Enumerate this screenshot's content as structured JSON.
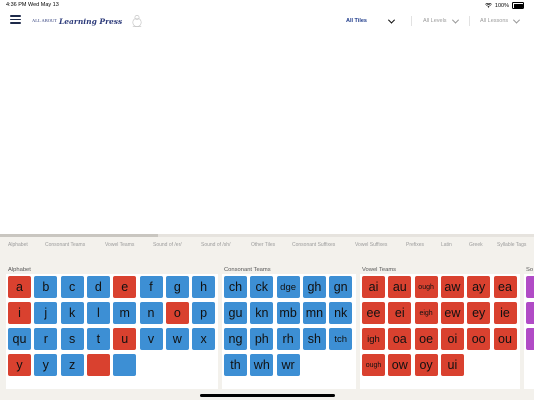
{
  "status_bar": {
    "time": "4:36 PM",
    "date": "Wed May 13",
    "battery": "100%"
  },
  "header": {
    "logo_small": "ALL ABOUT",
    "logo_script": "Learning Press",
    "tiles_filter": "All Tiles",
    "levels_filter": "All Levels",
    "lessons_filter": "All Lessons"
  },
  "categories": [
    "Alphabet",
    "Consonant Teams",
    "Vowel Teams",
    "Sound of /er/",
    "Sound of /sh/",
    "Other Tiles",
    "Consonant Suffixes",
    "Vowel Suffixes",
    "Prefixes",
    "Latin",
    "Greek",
    "Syllable Tags"
  ],
  "sections": {
    "alphabet": {
      "title": "Alphabet",
      "tiles": [
        {
          "text": "a",
          "color": "red"
        },
        {
          "text": "b",
          "color": "blue"
        },
        {
          "text": "c",
          "color": "blue"
        },
        {
          "text": "d",
          "color": "blue"
        },
        {
          "text": "e",
          "color": "red"
        },
        {
          "text": "f",
          "color": "blue"
        },
        {
          "text": "g",
          "color": "blue"
        },
        {
          "text": "h",
          "color": "blue"
        },
        {
          "text": "i",
          "color": "red"
        },
        {
          "text": "j",
          "color": "blue"
        },
        {
          "text": "k",
          "color": "blue"
        },
        {
          "text": "l",
          "color": "blue"
        },
        {
          "text": "m",
          "color": "blue"
        },
        {
          "text": "n",
          "color": "blue"
        },
        {
          "text": "o",
          "color": "red"
        },
        {
          "text": "p",
          "color": "blue"
        },
        {
          "text": "qu",
          "color": "blue"
        },
        {
          "text": "r",
          "color": "blue"
        },
        {
          "text": "s",
          "color": "blue"
        },
        {
          "text": "t",
          "color": "blue"
        },
        {
          "text": "u",
          "color": "red"
        },
        {
          "text": "v",
          "color": "blue"
        },
        {
          "text": "w",
          "color": "blue"
        },
        {
          "text": "x",
          "color": "blue"
        },
        {
          "text": "y",
          "color": "red"
        },
        {
          "text": "y",
          "color": "blue"
        },
        {
          "text": "z",
          "color": "blue"
        },
        {
          "text": "",
          "color": "red"
        },
        {
          "text": "",
          "color": "blue"
        }
      ]
    },
    "consonant_teams": {
      "title": "Consonant Teams",
      "tiles": [
        {
          "text": "ch",
          "color": "blue"
        },
        {
          "text": "ck",
          "color": "blue"
        },
        {
          "text": "dge",
          "color": "blue"
        },
        {
          "text": "gh",
          "color": "blue"
        },
        {
          "text": "gn",
          "color": "blue"
        },
        {
          "text": "gu",
          "color": "blue"
        },
        {
          "text": "kn",
          "color": "blue"
        },
        {
          "text": "mb",
          "color": "blue"
        },
        {
          "text": "mn",
          "color": "blue"
        },
        {
          "text": "nk",
          "color": "blue"
        },
        {
          "text": "ng",
          "color": "blue"
        },
        {
          "text": "ph",
          "color": "blue"
        },
        {
          "text": "rh",
          "color": "blue"
        },
        {
          "text": "sh",
          "color": "blue"
        },
        {
          "text": "tch",
          "color": "blue"
        },
        {
          "text": "th",
          "color": "blue"
        },
        {
          "text": "wh",
          "color": "blue"
        },
        {
          "text": "wr",
          "color": "blue"
        }
      ]
    },
    "vowel_teams": {
      "title": "Vowel Teams",
      "tiles": [
        {
          "text": "ai",
          "color": "red"
        },
        {
          "text": "au",
          "color": "red"
        },
        {
          "text": "ough",
          "color": "red"
        },
        {
          "text": "aw",
          "color": "red"
        },
        {
          "text": "ay",
          "color": "red"
        },
        {
          "text": "ea",
          "color": "red"
        },
        {
          "text": "ee",
          "color": "red"
        },
        {
          "text": "ei",
          "color": "red"
        },
        {
          "text": "eigh",
          "color": "red"
        },
        {
          "text": "ew",
          "color": "red"
        },
        {
          "text": "ey",
          "color": "red"
        },
        {
          "text": "ie",
          "color": "red"
        },
        {
          "text": "igh",
          "color": "red"
        },
        {
          "text": "oa",
          "color": "red"
        },
        {
          "text": "oe",
          "color": "red"
        },
        {
          "text": "oi",
          "color": "red"
        },
        {
          "text": "oo",
          "color": "red"
        },
        {
          "text": "ou",
          "color": "red"
        },
        {
          "text": "ough",
          "color": "red"
        },
        {
          "text": "ow",
          "color": "red"
        },
        {
          "text": "oy",
          "color": "red"
        },
        {
          "text": "ui",
          "color": "red"
        }
      ]
    },
    "sound_er": {
      "title": "So",
      "tiles": [
        {
          "text": "",
          "color": "purple"
        },
        {
          "text": "",
          "color": "purple"
        },
        {
          "text": "",
          "color": "purple"
        }
      ]
    }
  }
}
